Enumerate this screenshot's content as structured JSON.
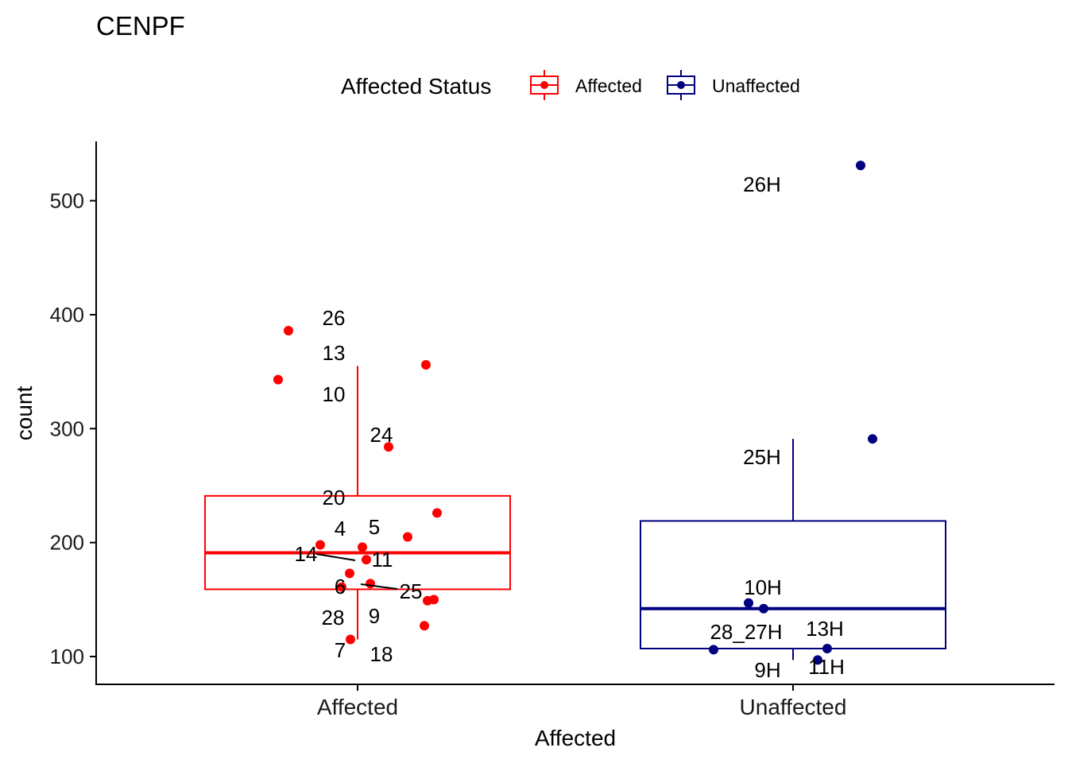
{
  "chart_data": {
    "type": "box",
    "title": "CENPF",
    "xlabel": "Affected",
    "ylabel": "count",
    "ylim": [
      75.6,
      552
    ],
    "yticks": [
      100,
      200,
      300,
      400,
      500
    ],
    "categories": [
      "Affected",
      "Unaffected"
    ],
    "legend": {
      "title": "Affected Status",
      "position": "top",
      "entries": [
        "Affected",
        "Unaffected"
      ]
    },
    "colors": {
      "Affected": "#ff0000",
      "Unaffected": "#000080"
    },
    "boxes": [
      {
        "category": "Affected",
        "whisker_low": 115,
        "q1": 159,
        "median": 191,
        "q3": 241,
        "whisker_high": 355
      },
      {
        "category": "Unaffected",
        "whisker_low": 97,
        "q1": 107,
        "median": 142,
        "q3": 219,
        "whisker_high": 291
      }
    ],
    "series": [
      {
        "name": "Affected",
        "points": [
          {
            "label": "26",
            "value": 386
          },
          {
            "label": "13",
            "value": 356
          },
          {
            "label": "10",
            "value": 343
          },
          {
            "label": "24",
            "value": 284
          },
          {
            "label": "20",
            "value": 226
          },
          {
            "label": "4",
            "value": 198
          },
          {
            "label": "5",
            "value": 205
          },
          {
            "label": "14",
            "value": 185
          },
          {
            "label": "11",
            "value": 196
          },
          {
            "label": "6",
            "value": 161
          },
          {
            "label": "25",
            "value": 164
          },
          {
            "label": "28",
            "value": 173
          },
          {
            "label": "9",
            "value": 149
          },
          {
            "label": "7",
            "value": 115
          },
          {
            "label": "18",
            "value": 127
          },
          {
            "label": "",
            "value": 150
          }
        ]
      },
      {
        "name": "Unaffected",
        "points": [
          {
            "label": "26H",
            "value": 531
          },
          {
            "label": "25H",
            "value": 291
          },
          {
            "label": "10H",
            "value": 147
          },
          {
            "label": "28_27H",
            "value": 106
          },
          {
            "label": "13H",
            "value": 107
          },
          {
            "label": "9H",
            "value": 142
          },
          {
            "label": "11H",
            "value": 97
          }
        ]
      }
    ]
  }
}
